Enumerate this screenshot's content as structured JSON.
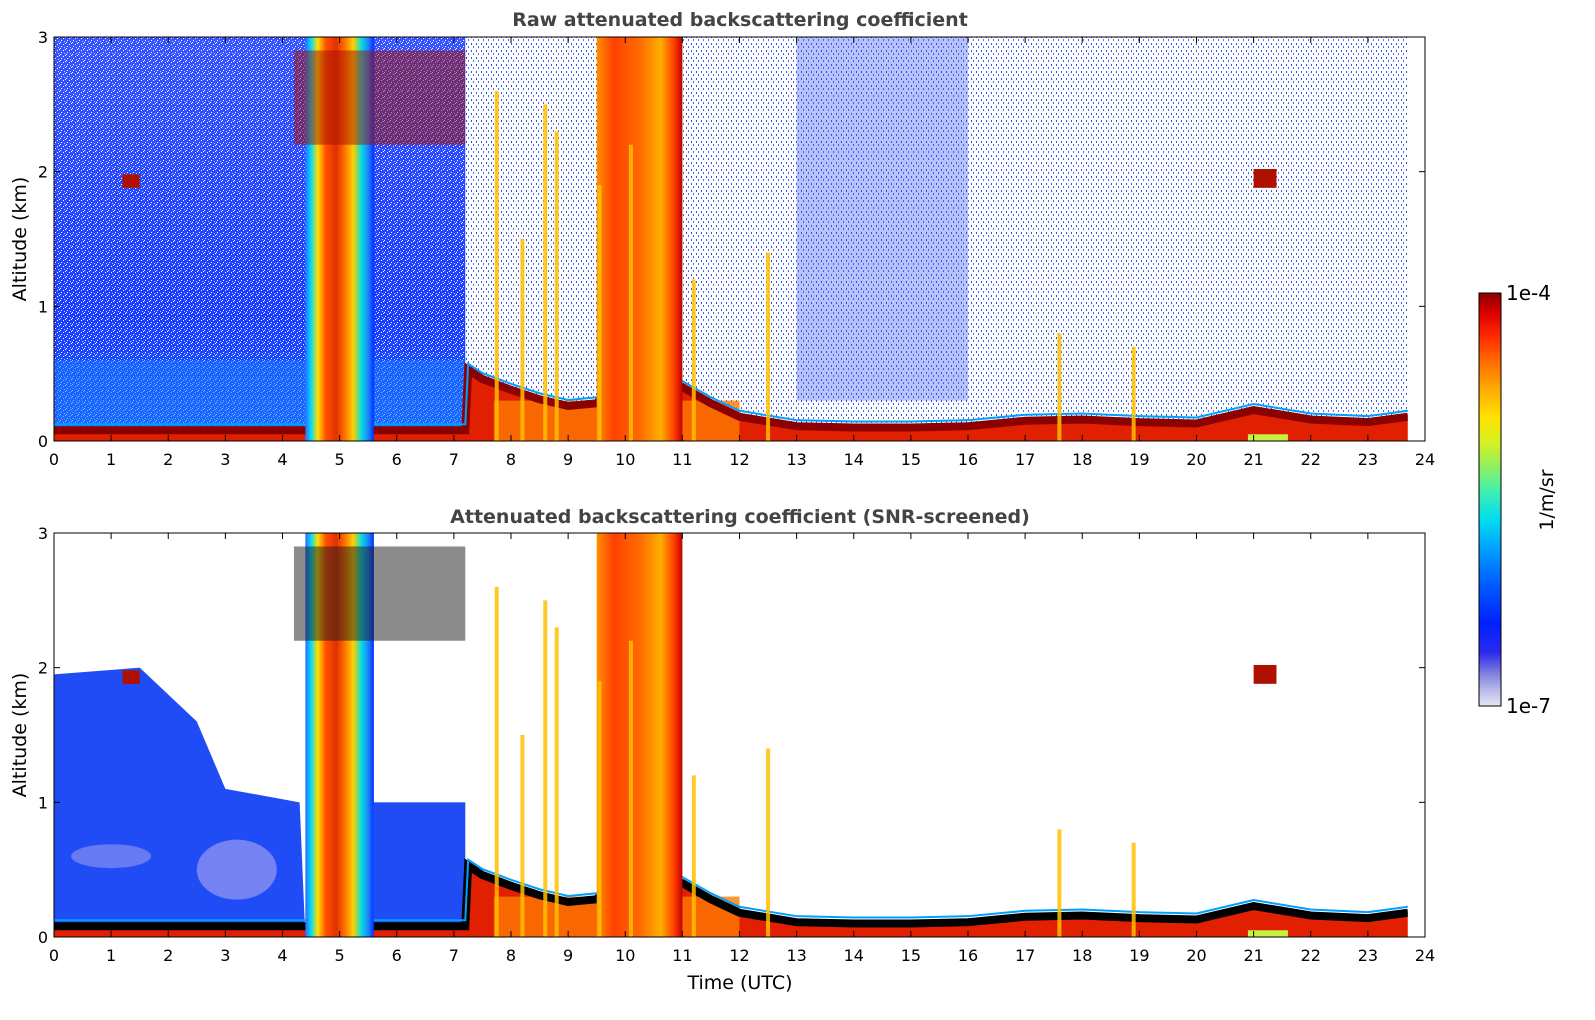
{
  "chart_data": [
    {
      "type": "heatmap",
      "title": "Raw attenuated backscattering coefficient",
      "xlabel": "",
      "ylabel": "Altitude (km)",
      "xlim": [
        0,
        24
      ],
      "ylim": [
        0,
        3
      ],
      "x_ticks": [
        "0",
        "1",
        "2",
        "3",
        "4",
        "5",
        "6",
        "7",
        "8",
        "9",
        "10",
        "11",
        "12",
        "13",
        "14",
        "15",
        "16",
        "17",
        "18",
        "19",
        "20",
        "21",
        "22",
        "23",
        "24"
      ],
      "y_ticks": [
        "0",
        "1",
        "2",
        "3"
      ],
      "data_end_hour": 23.7,
      "boundary_layer_top_km": [
        [
          0,
          0.1
        ],
        [
          7.2,
          0.1
        ],
        [
          7.25,
          0.55
        ],
        [
          7.5,
          0.48
        ],
        [
          8,
          0.4
        ],
        [
          8.5,
          0.33
        ],
        [
          9,
          0.28
        ],
        [
          9.5,
          0.3
        ],
        [
          10,
          0.55
        ],
        [
          10.5,
          0.45
        ],
        [
          11,
          0.42
        ],
        [
          11.5,
          0.3
        ],
        [
          12,
          0.2
        ],
        [
          13,
          0.13
        ],
        [
          14,
          0.12
        ],
        [
          15,
          0.12
        ],
        [
          16,
          0.13
        ],
        [
          17,
          0.17
        ],
        [
          18,
          0.18
        ],
        [
          19,
          0.16
        ],
        [
          20,
          0.15
        ],
        [
          21,
          0.25
        ],
        [
          22,
          0.18
        ],
        [
          23,
          0.16
        ],
        [
          23.7,
          0.2
        ]
      ],
      "cloud_features": [
        {
          "x": [
            4.4,
            5.6
          ],
          "y": [
            0,
            3
          ],
          "kind": "column"
        },
        {
          "x": [
            4.2,
            7.2
          ],
          "y": [
            2.2,
            2.9
          ],
          "kind": "layer"
        },
        {
          "x": [
            9.5,
            11.0
          ],
          "y": [
            0,
            3
          ],
          "kind": "column"
        },
        {
          "x": [
            1.2,
            1.5
          ],
          "y": [
            1.88,
            1.98
          ],
          "kind": "patch"
        },
        {
          "x": [
            21.0,
            21.4
          ],
          "y": [
            1.88,
            2.02
          ],
          "kind": "patch"
        }
      ]
    },
    {
      "type": "heatmap",
      "title": "Attenuated backscattering coefficient (SNR-screened)",
      "xlabel": "Time (UTC)",
      "ylabel": "Altitude (km)",
      "xlim": [
        0,
        24
      ],
      "ylim": [
        0,
        3
      ],
      "x_ticks": [
        "0",
        "1",
        "2",
        "3",
        "4",
        "5",
        "6",
        "7",
        "8",
        "9",
        "10",
        "11",
        "12",
        "13",
        "14",
        "15",
        "16",
        "17",
        "18",
        "19",
        "20",
        "21",
        "22",
        "23",
        "24"
      ],
      "y_ticks": [
        "0",
        "1",
        "2",
        "3"
      ],
      "data_end_hour": 23.7,
      "boundary_layer_top_km": [
        [
          0,
          0.1
        ],
        [
          7.2,
          0.1
        ],
        [
          7.25,
          0.55
        ],
        [
          7.5,
          0.48
        ],
        [
          8,
          0.4
        ],
        [
          8.5,
          0.33
        ],
        [
          9,
          0.28
        ],
        [
          9.5,
          0.3
        ],
        [
          10,
          0.55
        ],
        [
          10.5,
          0.45
        ],
        [
          11,
          0.42
        ],
        [
          11.5,
          0.3
        ],
        [
          12,
          0.2
        ],
        [
          13,
          0.13
        ],
        [
          14,
          0.12
        ],
        [
          15,
          0.12
        ],
        [
          16,
          0.13
        ],
        [
          17,
          0.17
        ],
        [
          18,
          0.18
        ],
        [
          19,
          0.16
        ],
        [
          20,
          0.15
        ],
        [
          21,
          0.25
        ],
        [
          22,
          0.18
        ],
        [
          23,
          0.16
        ],
        [
          23.7,
          0.2
        ]
      ],
      "aerosol_region_top_km": [
        [
          0,
          1.95
        ],
        [
          1.5,
          2.0
        ],
        [
          2.5,
          1.6
        ],
        [
          3.0,
          1.1
        ],
        [
          4.3,
          1.0
        ]
      ],
      "cloud_features": [
        {
          "x": [
            4.4,
            5.6
          ],
          "y": [
            0,
            3
          ],
          "kind": "column"
        },
        {
          "x": [
            4.2,
            7.2
          ],
          "y": [
            2.2,
            2.9
          ],
          "kind": "layer"
        },
        {
          "x": [
            9.5,
            11.0
          ],
          "y": [
            0,
            3
          ],
          "kind": "column"
        },
        {
          "x": [
            1.2,
            1.5
          ],
          "y": [
            1.88,
            1.98
          ],
          "kind": "patch"
        },
        {
          "x": [
            21.0,
            21.4
          ],
          "y": [
            1.88,
            2.02
          ],
          "kind": "patch"
        }
      ]
    }
  ],
  "colorbar": {
    "label": "1/m/sr",
    "max_label": "1e-4",
    "min_label": "1e-7",
    "scale": "log",
    "range": [
      1e-07,
      0.0001
    ],
    "colors": [
      "#e6e6f5",
      "#b8b8ea",
      "#7d7de0",
      "#2a2aee",
      "#0020ff",
      "#0060ff",
      "#00a0ff",
      "#00dcf0",
      "#40f0b0",
      "#90f060",
      "#d8f020",
      "#ffe000",
      "#ffb000",
      "#ff7000",
      "#ff3000",
      "#dd0000",
      "#8b0000"
    ]
  }
}
